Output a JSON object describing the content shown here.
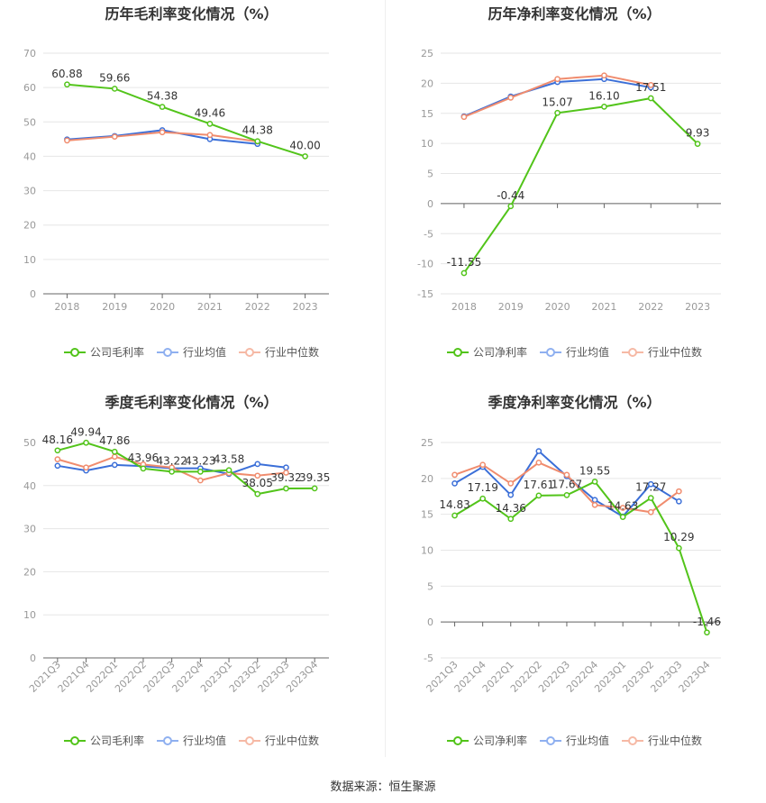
{
  "source": "数据来源：恒生聚源",
  "colors": {
    "company": "#52c41a",
    "avg": "#3b6fd8",
    "median": "#f08c6e"
  },
  "legend": {
    "avg": "行业均值",
    "median": "行业中位数"
  },
  "chart_data": [
    {
      "type": "line",
      "title": "历年毛利率变化情况（%）",
      "x": [
        "2018",
        "2019",
        "2020",
        "2021",
        "2022",
        "2023"
      ],
      "ylim": [
        0,
        70
      ],
      "yticks": [
        0,
        10,
        20,
        30,
        40,
        50,
        60,
        70
      ],
      "series": [
        {
          "name": "公司毛利率",
          "values": [
            60.88,
            59.66,
            54.38,
            49.46,
            44.38,
            40.0
          ],
          "labels": [
            "60.88",
            "59.66",
            "54.38",
            "49.46",
            "44.38",
            "40.00"
          ]
        },
        {
          "name": "行业均值",
          "values": [
            44.9,
            45.9,
            47.6,
            45.0,
            43.6,
            null
          ]
        },
        {
          "name": "行业中位数",
          "values": [
            44.6,
            45.7,
            47.0,
            46.2,
            44.3,
            null
          ]
        }
      ]
    },
    {
      "type": "line",
      "title": "历年净利率变化情况（%）",
      "x": [
        "2018",
        "2019",
        "2020",
        "2021",
        "2022",
        "2023"
      ],
      "ylim": [
        -15,
        25
      ],
      "yticks": [
        -15,
        -10,
        -5,
        0,
        5,
        10,
        15,
        20,
        25
      ],
      "series": [
        {
          "name": "公司净利率",
          "values": [
            -11.55,
            -0.44,
            15.07,
            16.1,
            17.51,
            9.93
          ],
          "labels": [
            "-11.55",
            "-0.44",
            "15.07",
            "16.10",
            "17.51",
            "9.93"
          ]
        },
        {
          "name": "行业均值",
          "values": [
            14.5,
            17.8,
            20.2,
            20.7,
            19.3,
            null
          ]
        },
        {
          "name": "行业中位数",
          "values": [
            14.4,
            17.6,
            20.7,
            21.3,
            19.7,
            null
          ]
        }
      ]
    },
    {
      "type": "line",
      "title": "季度毛利率变化情况（%）",
      "x": [
        "2021Q3",
        "2021Q4",
        "2022Q1",
        "2022Q2",
        "2022Q3",
        "2022Q4",
        "2023Q1",
        "2023Q2",
        "2023Q3",
        "2023Q4"
      ],
      "ylim": [
        0,
        50
      ],
      "yticks": [
        0,
        10,
        20,
        30,
        40,
        50
      ],
      "series": [
        {
          "name": "公司毛利率",
          "values": [
            48.16,
            49.94,
            47.86,
            43.96,
            43.22,
            43.23,
            43.58,
            38.05,
            39.32,
            39.35
          ],
          "labels": [
            "48.16",
            "49.94",
            "47.86",
            "43.96",
            "43.22",
            "43.23",
            "43.58",
            "38.05",
            "39.32",
            "39.35"
          ]
        },
        {
          "name": "行业均值",
          "values": [
            44.6,
            43.5,
            44.8,
            44.5,
            44.0,
            44.0,
            42.7,
            45.0,
            44.2,
            null
          ]
        },
        {
          "name": "行业中位数",
          "values": [
            46.1,
            44.2,
            46.7,
            44.9,
            44.2,
            41.2,
            42.9,
            42.3,
            43.0,
            null
          ]
        }
      ]
    },
    {
      "type": "line",
      "title": "季度净利率变化情况（%）",
      "x": [
        "2021Q3",
        "2021Q4",
        "2022Q1",
        "2022Q2",
        "2022Q3",
        "2022Q4",
        "2023Q1",
        "2023Q2",
        "2023Q3",
        "2023Q4"
      ],
      "ylim": [
        -5,
        25
      ],
      "yticks": [
        -5,
        0,
        5,
        10,
        15,
        20,
        25
      ],
      "series": [
        {
          "name": "公司净利率",
          "values": [
            14.83,
            17.19,
            14.36,
            17.61,
            17.67,
            19.55,
            14.63,
            17.27,
            10.29,
            -1.46
          ],
          "labels": [
            "14.83",
            "17.19",
            "14.36",
            "17.61",
            "17.67",
            "19.55",
            "14.63",
            "17.27",
            "10.29",
            "-1.46"
          ]
        },
        {
          "name": "行业均值",
          "values": [
            19.3,
            21.6,
            17.7,
            23.8,
            20.3,
            17.0,
            14.7,
            19.2,
            16.8,
            null
          ]
        },
        {
          "name": "行业中位数",
          "values": [
            20.5,
            21.9,
            19.3,
            22.2,
            20.5,
            16.3,
            15.9,
            15.3,
            18.2,
            null
          ]
        }
      ]
    }
  ]
}
